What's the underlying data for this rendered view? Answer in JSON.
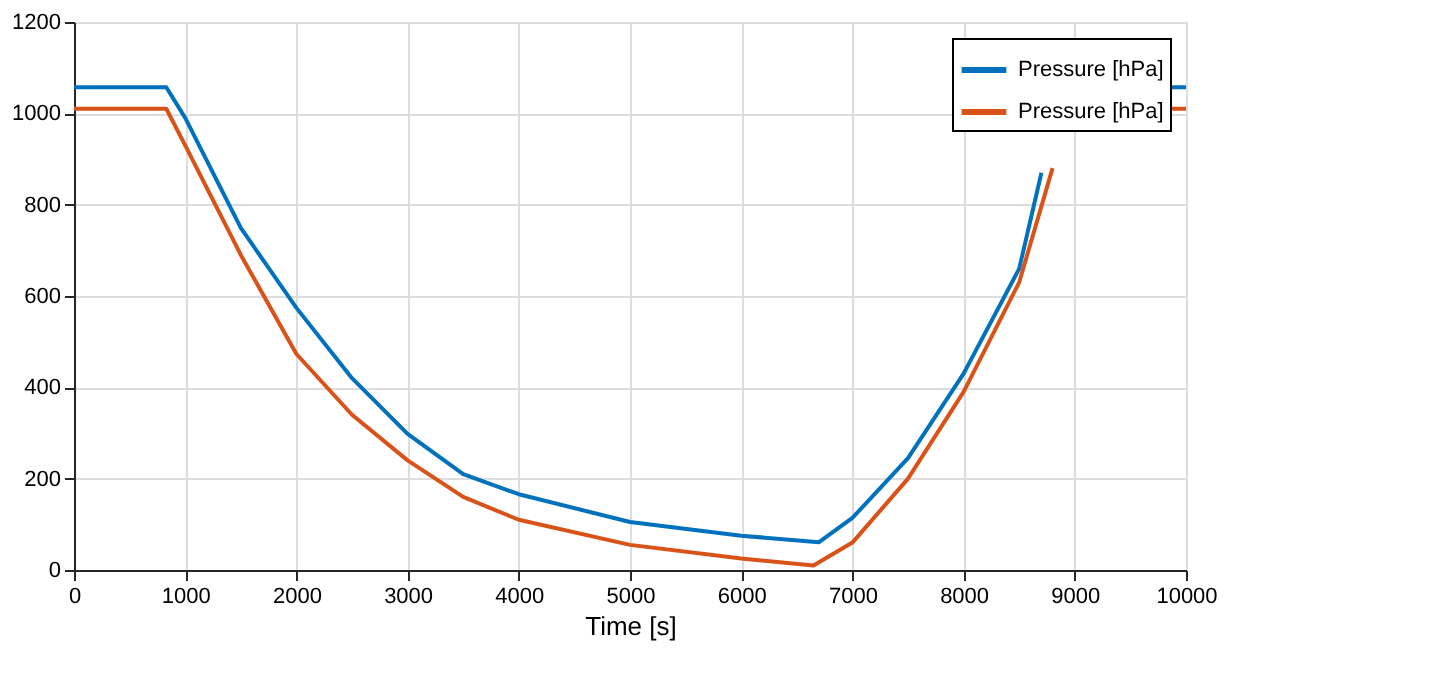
{
  "chart_data": {
    "type": "line",
    "xlabel": "Time [s]",
    "xlim": [
      0,
      10000
    ],
    "xticks": [
      0,
      1000,
      2000,
      3000,
      4000,
      5000,
      6000,
      7000,
      8000,
      9000,
      10000
    ],
    "ylim": [
      0,
      1200
    ],
    "yticks": [
      0,
      200,
      400,
      600,
      800,
      1000,
      1200
    ],
    "grid": true,
    "legend": "top right",
    "line_style": "solid",
    "marker": "none",
    "series": [
      {
        "name": "Pressure [hPa]",
        "color": "#0072bd",
        "x": [
          0,
          830,
          1000,
          1500,
          2000,
          2500,
          3000,
          3500,
          4000,
          5000,
          6000,
          6700,
          7000,
          7500,
          8000,
          8500,
          8700,
          8870,
          9850,
          10000
        ],
        "values": [
          1057,
          1057,
          990,
          749,
          574,
          420,
          298,
          210,
          166,
          105,
          75,
          61,
          114,
          245,
          430,
          660,
          870,
          null,
          1057,
          1057
        ]
      },
      {
        "name": "Pressure [hPa]",
        "color": "#d95319",
        "x": [
          0,
          830,
          1000,
          1500,
          2000,
          2500,
          3000,
          3500,
          4000,
          5000,
          6000,
          6650,
          7000,
          7500,
          8000,
          8500,
          8800,
          8950,
          9850,
          10000
        ],
        "values": [
          1010,
          1010,
          930,
          690,
          473,
          340,
          240,
          160,
          110,
          55,
          25,
          10,
          60,
          200,
          390,
          630,
          880,
          null,
          1010,
          1010
        ]
      }
    ]
  }
}
